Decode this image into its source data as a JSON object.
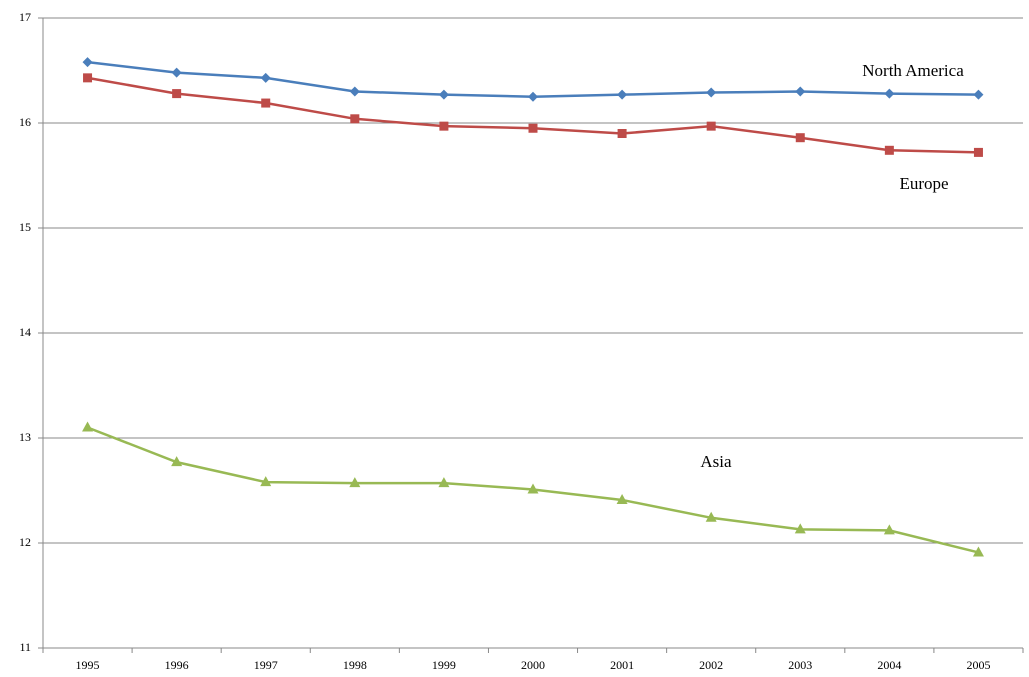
{
  "chart_data": {
    "type": "line",
    "categories": [
      "1995",
      "1996",
      "1997",
      "1998",
      "1999",
      "2000",
      "2001",
      "2002",
      "2003",
      "2004",
      "2005"
    ],
    "series": [
      {
        "name": "North America",
        "color": "#4a7ebb",
        "marker": "diamond",
        "values": [
          16.58,
          16.48,
          16.43,
          16.3,
          16.27,
          16.25,
          16.27,
          16.29,
          16.3,
          16.28,
          16.27
        ]
      },
      {
        "name": "Europe",
        "color": "#be4b48",
        "marker": "square",
        "values": [
          16.43,
          16.28,
          16.19,
          16.04,
          15.97,
          15.95,
          15.9,
          15.97,
          15.86,
          15.74,
          15.72
        ]
      },
      {
        "name": "Asia",
        "color": "#98b954",
        "marker": "triangle",
        "values": [
          13.1,
          12.77,
          12.58,
          12.57,
          12.57,
          12.51,
          12.41,
          12.24,
          12.13,
          12.12,
          11.91
        ]
      }
    ],
    "ylim": [
      11,
      17
    ],
    "yticks": [
      11,
      12,
      13,
      14,
      15,
      16,
      17
    ],
    "grid": true
  }
}
